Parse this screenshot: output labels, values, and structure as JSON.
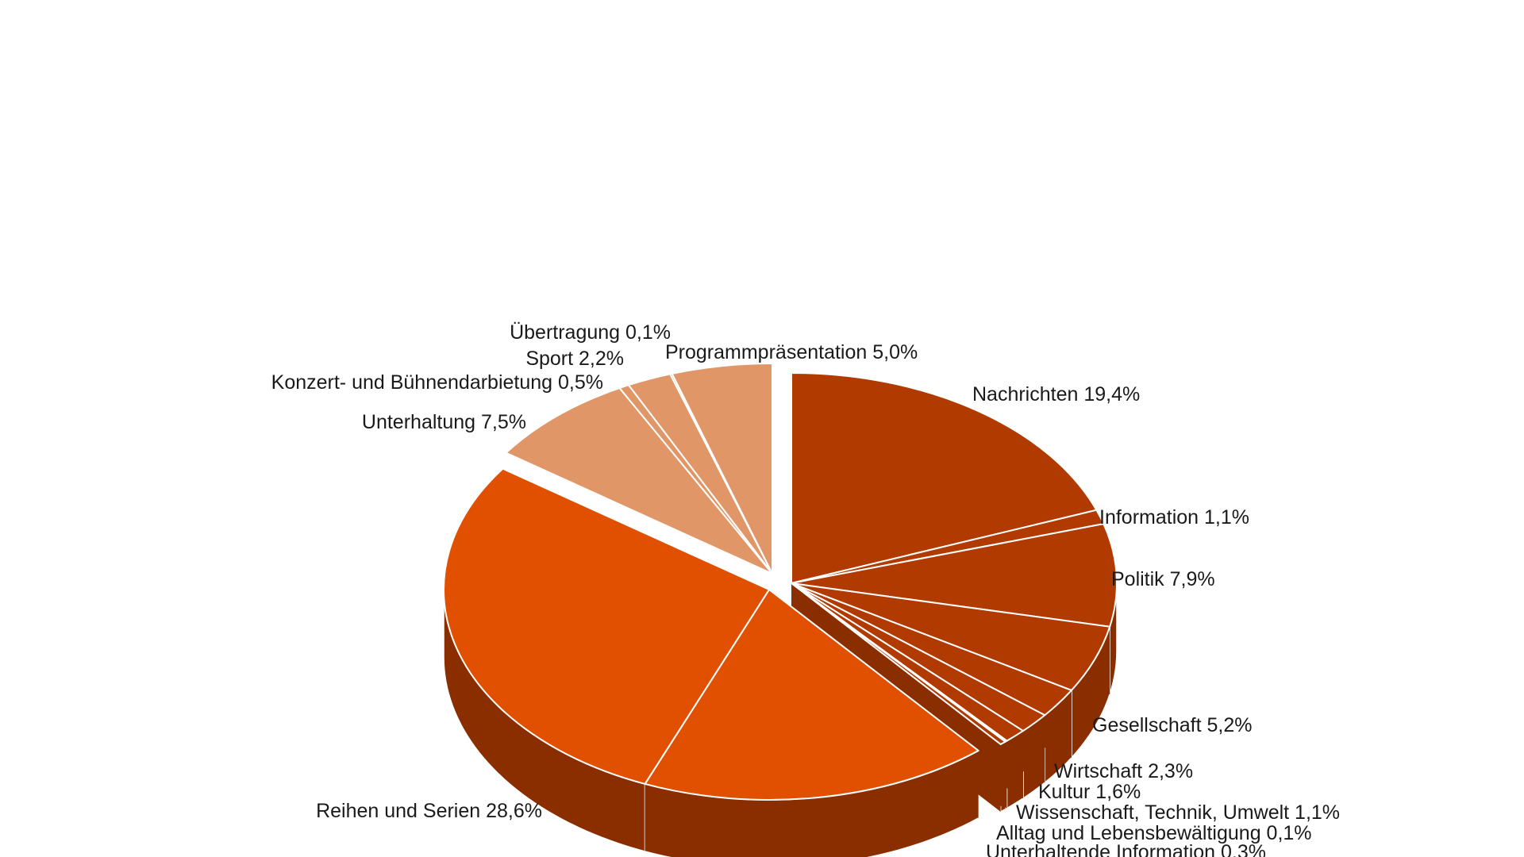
{
  "chart_data": {
    "type": "pie",
    "variant": "3d-exploded",
    "title": "",
    "start_angle_deg": -90,
    "direction": "clockwise",
    "colors": {
      "information_group": "#b03a00",
      "information_side": "#8a2e00",
      "fiction_group": "#e05000",
      "fiction_side": "#8a2e00",
      "entertainment_group": "#e09666",
      "entertainment_side": "#8a5a3c",
      "separator": "#ffffff"
    },
    "slices": [
      {
        "label": "Nachrichten 19,4%",
        "value": 19.4,
        "group": "information_group"
      },
      {
        "label": "Information 1,1%",
        "value": 1.1,
        "group": "information_group"
      },
      {
        "label": "Politik  7,9%",
        "value": 7.9,
        "group": "information_group"
      },
      {
        "label": "Gesellschaft  5,2%",
        "value": 5.2,
        "group": "information_group"
      },
      {
        "label": "Wirtschaft  2,3%",
        "value": 2.3,
        "group": "information_group"
      },
      {
        "label": "Kultur  1,6%",
        "value": 1.6,
        "group": "information_group"
      },
      {
        "label": "Wissenschaft, Technik, Umwelt  1,1%",
        "value": 1.1,
        "group": "information_group"
      },
      {
        "label": "Alltag und Lebensbewältigung  0,1%",
        "value": 0.1,
        "group": "information_group"
      },
      {
        "label": "Unterhaltende Information  0,3%",
        "value": 0.3,
        "group": "information_group"
      },
      {
        "label": "",
        "value": 17.4,
        "group": "fiction_group"
      },
      {
        "label": "Reihen und Serien  28,6%",
        "value": 28.6,
        "group": "fiction_group"
      },
      {
        "label": "Unterhaltung  7,5%",
        "value": 7.5,
        "group": "entertainment_group"
      },
      {
        "label": "Konzert- und Bühnendarbietung  0,5%",
        "value": 0.5,
        "group": "entertainment_group"
      },
      {
        "label": "Sport  2,2%",
        "value": 2.2,
        "group": "entertainment_group"
      },
      {
        "label": "Übertragung 0,1%",
        "value": 0.1,
        "group": "entertainment_group"
      },
      {
        "label": "Programmpräsentation 5,0%",
        "value": 5.0,
        "group": "entertainment_group"
      }
    ],
    "legend": "none",
    "grid": false
  }
}
